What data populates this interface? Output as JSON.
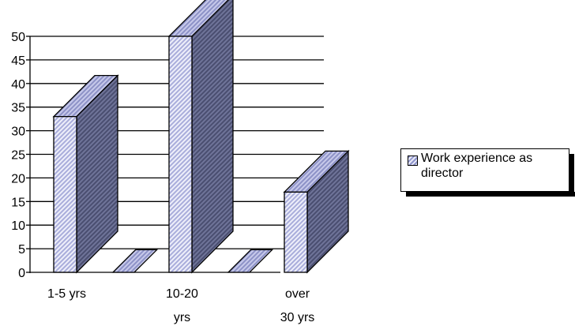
{
  "chart_data": {
    "type": "bar",
    "categories": [
      "1-5 yrs",
      "10-20 yrs",
      "over 30 yrs"
    ],
    "x": [
      "1-5 yrs",
      "",
      "10-20 yrs",
      "",
      "over 30 yrs"
    ],
    "series": [
      {
        "name": "Work experience as director",
        "values": [
          33,
          0,
          50,
          0,
          17
        ]
      }
    ],
    "category_label_lines": [
      [
        "1-5 yrs"
      ],
      [
        ""
      ],
      [
        "10-20",
        "yrs"
      ],
      [
        ""
      ],
      [
        "over",
        "30 yrs"
      ]
    ],
    "ylim": [
      0,
      50
    ],
    "yticks": [
      0,
      5,
      10,
      15,
      20,
      25,
      30,
      35,
      40,
      45,
      50
    ],
    "grid": true,
    "three_d": true,
    "legend": "right",
    "colors": {
      "front": "#c9cbeb",
      "side": "#5d6287",
      "top": "#9ea3d6",
      "axis": "#000000"
    }
  }
}
